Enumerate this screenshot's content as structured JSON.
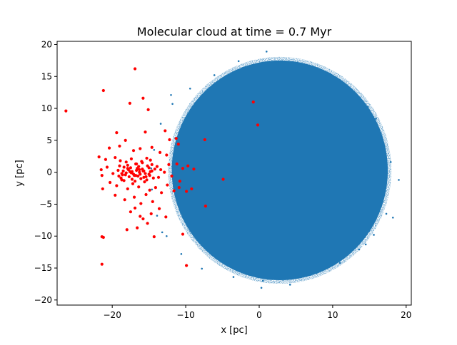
{
  "chart_data": {
    "type": "scatter",
    "title": "Molecular cloud at time = 0.7 Myr",
    "xlabel": "x [pc]",
    "ylabel": "y [pc]",
    "xlim": [
      -27.5,
      20.7
    ],
    "ylim": [
      -20.8,
      20.5
    ],
    "xticks": [
      -20,
      -10,
      0,
      10,
      20
    ],
    "yticks": [
      -20,
      -15,
      -10,
      -5,
      0,
      5,
      10,
      15,
      20
    ],
    "xtick_labels": [
      "−20",
      "−10",
      "0",
      "10",
      "20"
    ],
    "ytick_labels": [
      "−20",
      "−15",
      "−10",
      "−5",
      "0",
      "5",
      "10",
      "15",
      "20"
    ],
    "grid": false,
    "legend": false,
    "colors": {
      "cloud": "#1f77b4",
      "stars": "#ff0000"
    },
    "cloud_region": {
      "center": [
        2.8,
        0.3
      ],
      "radius_x": 14.7,
      "radius_y": 17.2,
      "edge_scatter_points": [
        [
          18.2,
          -7.1
        ],
        [
          17.3,
          -6.5
        ],
        [
          16.8,
          3.4
        ],
        [
          16.2,
          6.8
        ],
        [
          15.6,
          -9.8
        ],
        [
          14.8,
          10.2
        ],
        [
          13.6,
          -12.1
        ],
        [
          12.1,
          13.3
        ],
        [
          11.0,
          -14.2
        ],
        [
          9.1,
          15.1
        ],
        [
          7.8,
          -15.8
        ],
        [
          5.4,
          17.0
        ],
        [
          4.2,
          -17.6
        ],
        [
          1.0,
          18.9
        ],
        [
          0.5,
          -17.0
        ],
        [
          -2.8,
          17.4
        ],
        [
          -3.5,
          -16.4
        ],
        [
          -6.1,
          15.2
        ],
        [
          -7.8,
          -15.1
        ],
        [
          -9.4,
          13.1
        ],
        [
          -10.6,
          -12.8
        ],
        [
          -11.8,
          10.7
        ],
        [
          -12.6,
          -10.0
        ],
        [
          -13.4,
          7.6
        ],
        [
          -13.9,
          -6.8
        ],
        [
          -14.3,
          3.5
        ],
        [
          -14.6,
          -2.7
        ],
        [
          -14.7,
          0.6
        ],
        [
          19.0,
          -1.2
        ],
        [
          17.9,
          1.6
        ],
        [
          -13.2,
          -9.4
        ],
        [
          -12.0,
          12.1
        ],
        [
          14.5,
          -11.3
        ],
        [
          15.9,
          8.4
        ],
        [
          0.3,
          -18.1
        ]
      ]
    },
    "stars": {
      "x": [
        -26.3,
        -21.2,
        -16.9,
        -15.8,
        -15.1,
        -17.6,
        -12.8,
        -0.8,
        -0.2,
        -19.4,
        -18.2,
        -15.5,
        -12.2,
        -11.3,
        -11.0,
        -7.4,
        -20.4,
        -19.0,
        -17.1,
        -16.2,
        -14.6,
        -13.5,
        -12.6,
        -9.7,
        -4.9,
        -21.8,
        -20.9,
        -19.6,
        -18.9,
        -18.1,
        -17.4,
        -16.7,
        -16.0,
        -15.3,
        -14.8,
        -13.9,
        -13.4,
        -12.3,
        -11.2,
        -10.4,
        -8.9,
        -21.5,
        -20.7,
        -19.9,
        -19.2,
        -18.6,
        -17.9,
        -17.3,
        -16.8,
        -16.3,
        -15.7,
        -15.0,
        -14.2,
        -13.7,
        -12.9,
        -11.9,
        -10.8,
        -9.2,
        -7.3,
        -21.4,
        -20.3,
        -19.4,
        -18.7,
        -17.9,
        -17.2,
        -16.4,
        -15.6,
        -14.9,
        -14.1,
        -13.3,
        -12.5,
        -11.6,
        -10.9,
        -9.9,
        -21.3,
        -19.6,
        -18.3,
        -17.0,
        -16.1,
        -15.4,
        -14.5,
        -13.6,
        -12.7,
        -21.4,
        -18.0,
        -16.6,
        -14.3,
        -10.4,
        -9.9,
        -17.5,
        -16.9,
        -16.2,
        -15.8,
        -15.2,
        -14.7,
        -18.8,
        -18.4,
        -17.7,
        -17.3,
        -16.9,
        -16.5,
        -16.1,
        -15.7,
        -15.3,
        -14.9,
        -14.4,
        -18.5,
        -18.1,
        -17.6,
        -17.1,
        -16.7,
        -16.3,
        -15.9,
        -15.5,
        -15.0,
        -14.6,
        -19.1,
        -18.7,
        -18.2,
        -17.8,
        -17.4,
        -17.0,
        -16.6,
        -16.2,
        -15.8,
        -15.4,
        -14.8,
        -19.0,
        -18.4,
        -17.9,
        -17.5,
        -16.8,
        -16.4,
        -15.9,
        -15.2,
        -14.6
      ],
      "y": [
        9.6,
        12.8,
        16.2,
        11.6,
        9.8,
        10.8,
        6.5,
        11.0,
        7.4,
        6.2,
        5.0,
        6.3,
        5.1,
        5.3,
        4.4,
        5.1,
        3.8,
        4.1,
        3.4,
        3.7,
        3.9,
        3.1,
        2.7,
        1.0,
        -1.1,
        2.4,
        2.0,
        2.3,
        1.8,
        1.6,
        2.1,
        1.3,
        1.7,
        2.2,
        1.9,
        0.9,
        0.4,
        1.2,
        1.3,
        0.6,
        0.5,
        0.4,
        0.8,
        -0.2,
        0.3,
        -0.4,
        0.6,
        0.1,
        -0.5,
        0.4,
        0.2,
        -0.3,
        0.5,
        -0.8,
        0.0,
        -0.6,
        -1.4,
        -2.6,
        -5.3,
        -0.5,
        -1.6,
        -2.1,
        -1.2,
        -2.6,
        -1.8,
        -2.3,
        -1.5,
        -2.8,
        -2.4,
        -3.2,
        -2.0,
        -2.9,
        -2.4,
        -3.0,
        -2.6,
        -3.6,
        -4.3,
        -3.9,
        -4.9,
        -3.5,
        -4.6,
        -5.7,
        -7.0,
        -10.1,
        -9.0,
        -8.7,
        -10.1,
        -9.7,
        -14.6,
        -6.2,
        -5.6,
        -6.9,
        -7.3,
        -8.0,
        -6.5,
        -0.9,
        -1.3,
        -0.7,
        -1.1,
        -1.4,
        -0.6,
        -1.0,
        -0.8,
        -1.2,
        -0.5,
        -0.9,
        0.2,
        -0.1,
        0.1,
        -0.3,
        0.3,
        0.0,
        0.5,
        -0.2,
        0.7,
        0.2,
        -0.6,
        -0.2,
        -0.4,
        0.4,
        -0.1,
        -0.5,
        0.6,
        -0.3,
        0.2,
        -0.7,
        0.1,
        1.0,
        0.8,
        1.1,
        0.7,
        1.3,
        0.9,
        1.5,
        1.0,
        1.2
      ],
      "outliers": [
        [
          -21.4,
          -14.4
        ],
        [
          -21.2,
          -10.2
        ]
      ]
    }
  }
}
